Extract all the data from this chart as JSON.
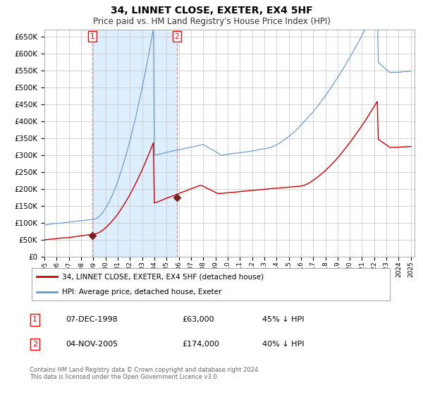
{
  "title": "34, LINNET CLOSE, EXETER, EX4 5HF",
  "subtitle": "Price paid vs. HM Land Registry's House Price Index (HPI)",
  "footnote": "Contains HM Land Registry data © Crown copyright and database right 2024.\nThis data is licensed under the Open Government Licence v3.0.",
  "legend_entries": [
    "34, LINNET CLOSE, EXETER, EX4 5HF (detached house)",
    "HPI: Average price, detached house, Exeter"
  ],
  "sale1_date": "07-DEC-1998",
  "sale1_price": "£63,000",
  "sale1_hpi": "45% ↓ HPI",
  "sale2_date": "04-NOV-2005",
  "sale2_price": "£174,000",
  "sale2_hpi": "40% ↓ HPI",
  "red_line_color": "#cc0000",
  "blue_line_color": "#6699cc",
  "shade_color": "#ddeeff",
  "grid_color": "#cccccc",
  "marker_color": "#7a2020",
  "vline_color": "#cc9999",
  "ylim_max": 670000,
  "ylim_min": 0
}
